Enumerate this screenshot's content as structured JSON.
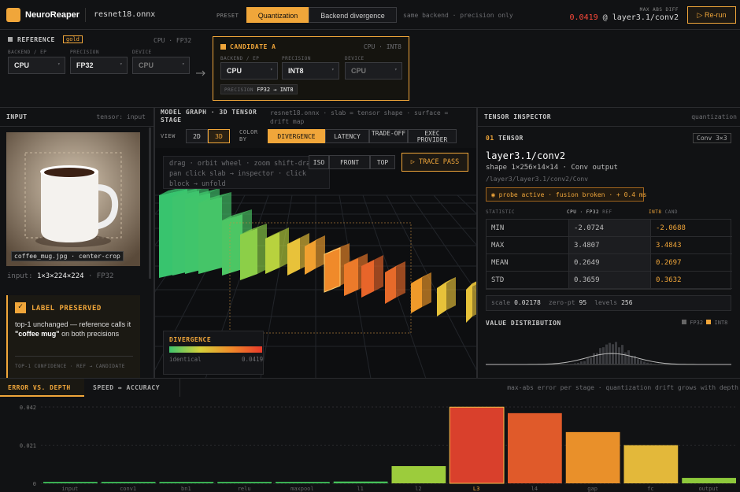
{
  "header": {
    "brand": "NeuroReaper",
    "file": "resnet18.onnx",
    "preset_label": "PRESET",
    "presets": [
      "Quantization",
      "Backend divergence"
    ],
    "preset_note": "same backend · precision only",
    "max_abs_label": "MAX ABS DIFF",
    "max_abs_value": "0.0419",
    "max_abs_at": "@ layer3.1/conv2",
    "rerun": "▷ Re-run"
  },
  "reference": {
    "title": "REFERENCE",
    "badge": "gold",
    "meta": "CPU · FP32",
    "fields": [
      {
        "label": "BACKEND / EP",
        "value": "CPU"
      },
      {
        "label": "PRECISION",
        "value": "FP32"
      },
      {
        "label": "DEVICE",
        "value": "CPU"
      }
    ]
  },
  "candidate": {
    "title": "CANDIDATE A",
    "meta": "CPU · INT8",
    "fields": [
      {
        "label": "BACKEND / EP",
        "value": "CPU"
      },
      {
        "label": "PRECISION",
        "value": "INT8"
      },
      {
        "label": "DEVICE",
        "value": "CPU"
      }
    ],
    "precision_label": "PRECISION",
    "precision_change": "FP32 → INT8"
  },
  "input": {
    "title": "INPUT",
    "tag": "tensor: input",
    "caption": "coffee_mug.jpg · center-crop",
    "shape_label": "input:",
    "shape": "1×3×224×224",
    "dtype": "· FP32",
    "label_title": "LABEL PRESERVED",
    "label_before": "top-1 unchanged — reference calls it",
    "label_emphasis": "\"coffee mug\"",
    "label_after": "on both precisions",
    "label_footer": "TOP-1 CONFIDENCE · REF → CANDIDATE"
  },
  "graph": {
    "title": "MODEL GRAPH · 3D TENSOR STAGE",
    "subtitle": "resnet18.onnx · slab = tensor shape · surface = drift map",
    "view_label": "VIEW",
    "views": [
      "2D",
      "3D"
    ],
    "color_label": "COLOR BY",
    "color_options": [
      "DIVERGENCE",
      "LATENCY",
      "TRADE-OFF",
      "EXEC PROVIDER"
    ],
    "cameras": [
      "ISO",
      "FRONT",
      "TOP"
    ],
    "trace": "▷ TRACE PASS",
    "hint": "drag · orbit   wheel · zoom   shift-drag · pan   click slab → inspector · click block → unfold",
    "legend_title": "DIVERGENCE",
    "legend_low": "identical",
    "legend_high": "0.0419"
  },
  "inspector": {
    "title": "TENSOR INSPECTOR",
    "tag": "quantization",
    "section_num": "01",
    "section": "TENSOR",
    "badge": "Conv 3×3",
    "name": "layer3.1/conv2",
    "shape": "shape 1×256×14×14 · Conv output",
    "path": "/layer3/layer3.1/conv2/Conv",
    "probe": "probe active · fusion broken · + 0.4 ms",
    "stat_header": [
      "STATISTIC",
      "CPU · FP32",
      "REF",
      "INT8",
      "CAND"
    ],
    "stats": [
      [
        "MIN",
        "-2.0724",
        "-2.0688"
      ],
      [
        "MAX",
        "3.4807",
        "3.4843"
      ],
      [
        "MEAN",
        "0.2649",
        "0.2697"
      ],
      [
        "STD",
        "0.3659",
        "0.3632"
      ]
    ],
    "quant": [
      [
        "scale",
        "0.02178"
      ],
      [
        "zero-pt",
        "95"
      ],
      [
        "levels",
        "256"
      ]
    ],
    "dist_title": "VALUE DISTRIBUTION",
    "dist_legend": [
      "FP32",
      "INT8"
    ]
  },
  "bottom": {
    "tabs": [
      "ERROR VS. DEPTH",
      "SPEED ↔ ACCURACY"
    ],
    "note": "max-abs error per stage · quantization drift grows with depth"
  },
  "chart_data": {
    "type": "bar",
    "categories": [
      "input",
      "conv1",
      "bn1",
      "relu",
      "maxpool",
      "l1",
      "l2",
      "L3",
      "l4",
      "gap",
      "fc",
      "output"
    ],
    "values": [
      0.0008,
      0.0008,
      0.0008,
      0.0008,
      0.0008,
      0.001,
      0.0095,
      0.0419,
      0.0386,
      0.0282,
      0.021,
      0.003
    ],
    "colors": [
      "#3fbf5a",
      "#3fbf5a",
      "#3fbf5a",
      "#3fbf5a",
      "#3fbf5a",
      "#46c25a",
      "#9ccc3c",
      "#d9402c",
      "#e05a2a",
      "#e9902a",
      "#e3b83a",
      "#8ec93c"
    ],
    "ylim": [
      0,
      0.042
    ],
    "yticks": [
      0.042,
      0.021,
      0
    ],
    "grid": true
  }
}
